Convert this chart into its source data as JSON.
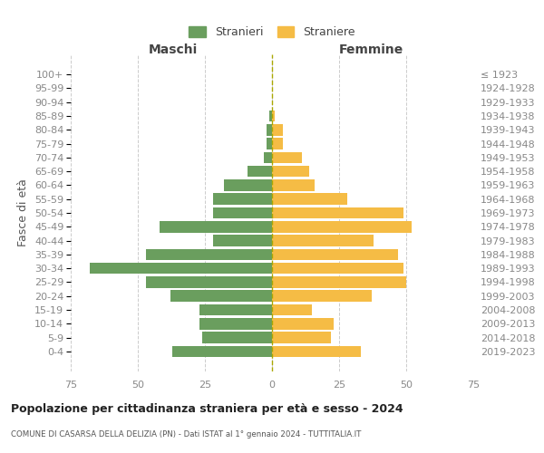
{
  "age_groups": [
    "0-4",
    "5-9",
    "10-14",
    "15-19",
    "20-24",
    "25-29",
    "30-34",
    "35-39",
    "40-44",
    "45-49",
    "50-54",
    "55-59",
    "60-64",
    "65-69",
    "70-74",
    "75-79",
    "80-84",
    "85-89",
    "90-94",
    "95-99",
    "100+"
  ],
  "birth_years": [
    "2019-2023",
    "2014-2018",
    "2009-2013",
    "2004-2008",
    "1999-2003",
    "1994-1998",
    "1989-1993",
    "1984-1988",
    "1979-1983",
    "1974-1978",
    "1969-1973",
    "1964-1968",
    "1959-1963",
    "1954-1958",
    "1949-1953",
    "1944-1948",
    "1939-1943",
    "1934-1938",
    "1929-1933",
    "1924-1928",
    "≤ 1923"
  ],
  "males": [
    37,
    26,
    27,
    27,
    38,
    47,
    68,
    47,
    22,
    42,
    22,
    22,
    18,
    9,
    3,
    2,
    2,
    1,
    0,
    0,
    0
  ],
  "females": [
    33,
    22,
    23,
    15,
    37,
    50,
    49,
    47,
    38,
    52,
    49,
    28,
    16,
    14,
    11,
    4,
    4,
    1,
    0,
    0,
    0
  ],
  "male_color": "#6a9e5e",
  "female_color": "#f5bc45",
  "xlim": 75,
  "title": "Popolazione per cittadinanza straniera per età e sesso - 2024",
  "subtitle": "COMUNE DI CASARSA DELLA DELIZIA (PN) - Dati ISTAT al 1° gennaio 2024 - TUTTITALIA.IT",
  "xlabel_left": "Maschi",
  "xlabel_right": "Femmine",
  "ylabel_left": "Fasce di età",
  "legend_male": "Stranieri",
  "legend_female": "Straniere",
  "background_color": "#ffffff",
  "grid_color": "#cccccc",
  "tick_color": "#888888"
}
